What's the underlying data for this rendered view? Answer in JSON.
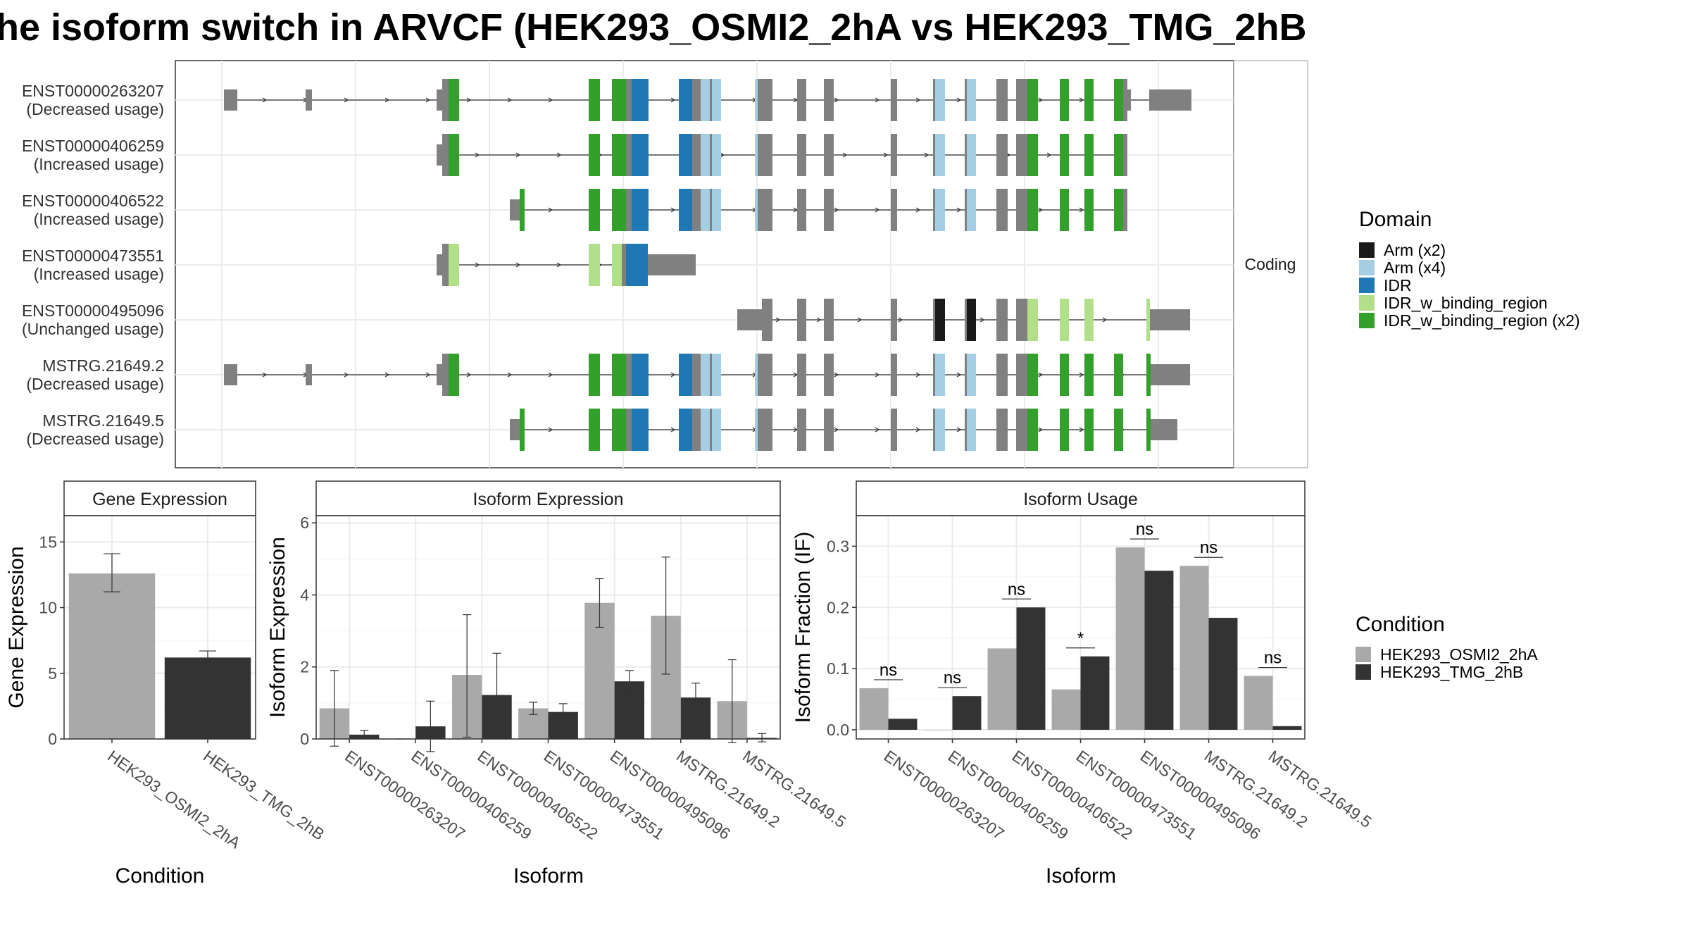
{
  "title": "he isoform switch in ARVCF (HEK293_OSMI2_2hA vs HEK293_TMG_2hB",
  "colors": {
    "gray": "#808080",
    "arm_x2": "#1a1a1a",
    "arm_x4": "#a6cee3",
    "idr": "#1f78b4",
    "idr_bind": "#b2df8a",
    "idr_bind_x2": "#33a02c",
    "cond_a": "#a9a9a9",
    "cond_b": "#333333"
  },
  "structure_panel": {
    "strip_label": "Coding",
    "legend_title": "Domain",
    "legend_items": [
      {
        "label": "Arm (x2)",
        "color": "#1a1a1a"
      },
      {
        "label": "Arm (x4)",
        "color": "#a6cee3"
      },
      {
        "label": "IDR",
        "color": "#1f78b4"
      },
      {
        "label": "IDR_w_binding_region",
        "color": "#b2df8a"
      },
      {
        "label": "IDR_w_binding_region (x2)",
        "color": "#33a02c"
      }
    ],
    "isoforms": [
      {
        "id": "ENST00000263207",
        "usage": "(Decreased usage)"
      },
      {
        "id": "ENST00000406259",
        "usage": "(Increased usage)"
      },
      {
        "id": "ENST00000406522",
        "usage": "(Increased usage)"
      },
      {
        "id": "ENST00000473551",
        "usage": "(Increased usage)"
      },
      {
        "id": "ENST00000495096",
        "usage": "(Unchanged usage)"
      },
      {
        "id": "MSTRG.21649.2",
        "usage": "(Decreased usage)"
      },
      {
        "id": "MSTRG.21649.5",
        "usage": "(Decreased usage)"
      }
    ]
  },
  "chart_data": [
    {
      "type": "bar",
      "title": "Gene Expression",
      "xlabel": "Condition",
      "ylabel": "Gene Expression",
      "ylim": [
        0,
        17
      ],
      "yticks": [
        0,
        5,
        10,
        15
      ],
      "categories": [
        "HEK293_OSMI2_2hA",
        "HEK293_TMG_2hB"
      ],
      "values": [
        12.6,
        6.2
      ],
      "errors": [
        [
          11.2,
          14.1
        ],
        [
          5.6,
          6.7
        ]
      ]
    },
    {
      "type": "bar",
      "title": "Isoform Expression",
      "xlabel": "Isoform",
      "ylabel": "Isoform Expression",
      "ylim": [
        0,
        6.2
      ],
      "yticks": [
        0,
        2,
        4,
        6
      ],
      "categories": [
        "ENST00000263207",
        "ENST00000406259",
        "ENST00000406522",
        "ENST00000473551",
        "ENST00000495096",
        "MSTRG.21649.2",
        "MSTRG.21649.5"
      ],
      "series": [
        {
          "name": "HEK293_OSMI2_2hA",
          "values": [
            0.85,
            0.0,
            1.78,
            0.85,
            3.78,
            3.42,
            1.05
          ],
          "errors": [
            [
              -0.2,
              1.9
            ],
            [
              0.0,
              0.0
            ],
            [
              0.05,
              3.45
            ],
            [
              0.68,
              1.02
            ],
            [
              3.1,
              4.45
            ],
            [
              1.8,
              5.05
            ],
            [
              -0.1,
              2.2
            ]
          ]
        },
        {
          "name": "HEK293_TMG_2hB",
          "values": [
            0.12,
            0.35,
            1.22,
            0.75,
            1.6,
            1.15,
            0.03
          ],
          "errors": [
            [
              0.02,
              0.24
            ],
            [
              -0.35,
              1.05
            ],
            [
              0.05,
              2.38
            ],
            [
              0.52,
              0.98
            ],
            [
              1.3,
              1.9
            ],
            [
              0.75,
              1.55
            ],
            [
              -0.08,
              0.15
            ]
          ]
        }
      ]
    },
    {
      "type": "bar",
      "title": "Isoform Usage",
      "xlabel": "Isoform",
      "ylabel": "Isoform Fraction (IF)",
      "ylim": [
        -0.015,
        0.35
      ],
      "yticks": [
        0.0,
        0.1,
        0.2,
        0.3
      ],
      "ytick_labels": [
        "0.0",
        "0.1",
        "0.2",
        "0.3"
      ],
      "categories": [
        "ENST00000263207",
        "ENST00000406259",
        "ENST00000406522",
        "ENST00000473551",
        "ENST00000495096",
        "MSTRG.21649.2",
        "MSTRG.21649.5"
      ],
      "series": [
        {
          "name": "HEK293_OSMI2_2hA",
          "values": [
            0.068,
            0.0,
            0.133,
            0.066,
            0.298,
            0.268,
            0.088
          ]
        },
        {
          "name": "HEK293_TMG_2hB",
          "values": [
            0.018,
            0.055,
            0.2,
            0.12,
            0.26,
            0.183,
            0.006
          ]
        }
      ],
      "significance": [
        "ns",
        "ns",
        "ns",
        "*",
        "ns",
        "ns",
        "ns"
      ]
    }
  ],
  "condition_legend": {
    "title": "Condition",
    "items": [
      {
        "label": "HEK293_OSMI2_2hA",
        "color": "#a9a9a9"
      },
      {
        "label": "HEK293_TMG_2hB",
        "color": "#333333"
      }
    ]
  }
}
